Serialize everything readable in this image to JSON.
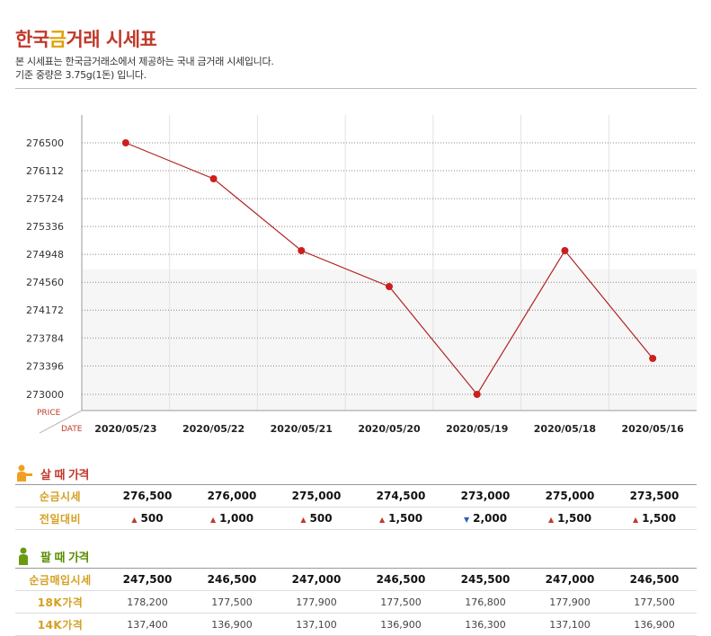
{
  "header": {
    "title_part1": "한국",
    "title_part2": "금",
    "title_part3": "거래 시세표",
    "desc1": "본 시세표는 한국금거래소에서 제공하는 국내 금거래 시세입니다.",
    "desc2": "기준 중량은 3.75g(1돈) 입니다."
  },
  "chart_data": {
    "type": "line",
    "categories": [
      "2020/05/23",
      "2020/05/22",
      "2020/05/21",
      "2020/05/20",
      "2020/05/19",
      "2020/05/18",
      "2020/05/16"
    ],
    "series": [
      {
        "values": [
          276500,
          276000,
          275000,
          274500,
          273000,
          275000,
          273500
        ]
      }
    ],
    "yticks": [
      276500,
      276112,
      275724,
      275336,
      274948,
      274560,
      274172,
      273784,
      273396,
      273000
    ],
    "ylim": [
      273000,
      276500
    ],
    "ylabel": "PRICE",
    "xlabel": "DATE",
    "line_color": "#b22222",
    "grid": true
  },
  "buy": {
    "heading": "살 때 가격",
    "rows": [
      {
        "label": "순금시세",
        "values": [
          "276,500",
          "276,000",
          "275,000",
          "274,500",
          "273,000",
          "275,000",
          "273,500"
        ]
      }
    ],
    "change_label": "전일대비",
    "changes": [
      {
        "dir": "up",
        "glyph": "▲",
        "value": "500"
      },
      {
        "dir": "up",
        "glyph": "▲",
        "value": "1,000"
      },
      {
        "dir": "up",
        "glyph": "▲",
        "value": "500"
      },
      {
        "dir": "up",
        "glyph": "▲",
        "value": "1,500"
      },
      {
        "dir": "down",
        "glyph": "▼",
        "value": "2,000"
      },
      {
        "dir": "up",
        "glyph": "▲",
        "value": "1,500"
      },
      {
        "dir": "up",
        "glyph": "▲",
        "value": "1,500"
      }
    ]
  },
  "sell": {
    "heading": "팔 때 가격",
    "rows": [
      {
        "label": "순금매입시세",
        "values": [
          "247,500",
          "246,500",
          "247,000",
          "246,500",
          "245,500",
          "247,000",
          "246,500"
        ]
      },
      {
        "label": "18K가격",
        "values": [
          "178,200",
          "177,500",
          "177,900",
          "177,500",
          "176,800",
          "177,900",
          "177,500"
        ]
      },
      {
        "label": "14K가격",
        "values": [
          "137,400",
          "136,900",
          "137,100",
          "136,900",
          "136,300",
          "137,100",
          "136,900"
        ]
      }
    ]
  },
  "icons": {
    "buy": "person-buy-icon",
    "sell": "person-sell-icon"
  }
}
